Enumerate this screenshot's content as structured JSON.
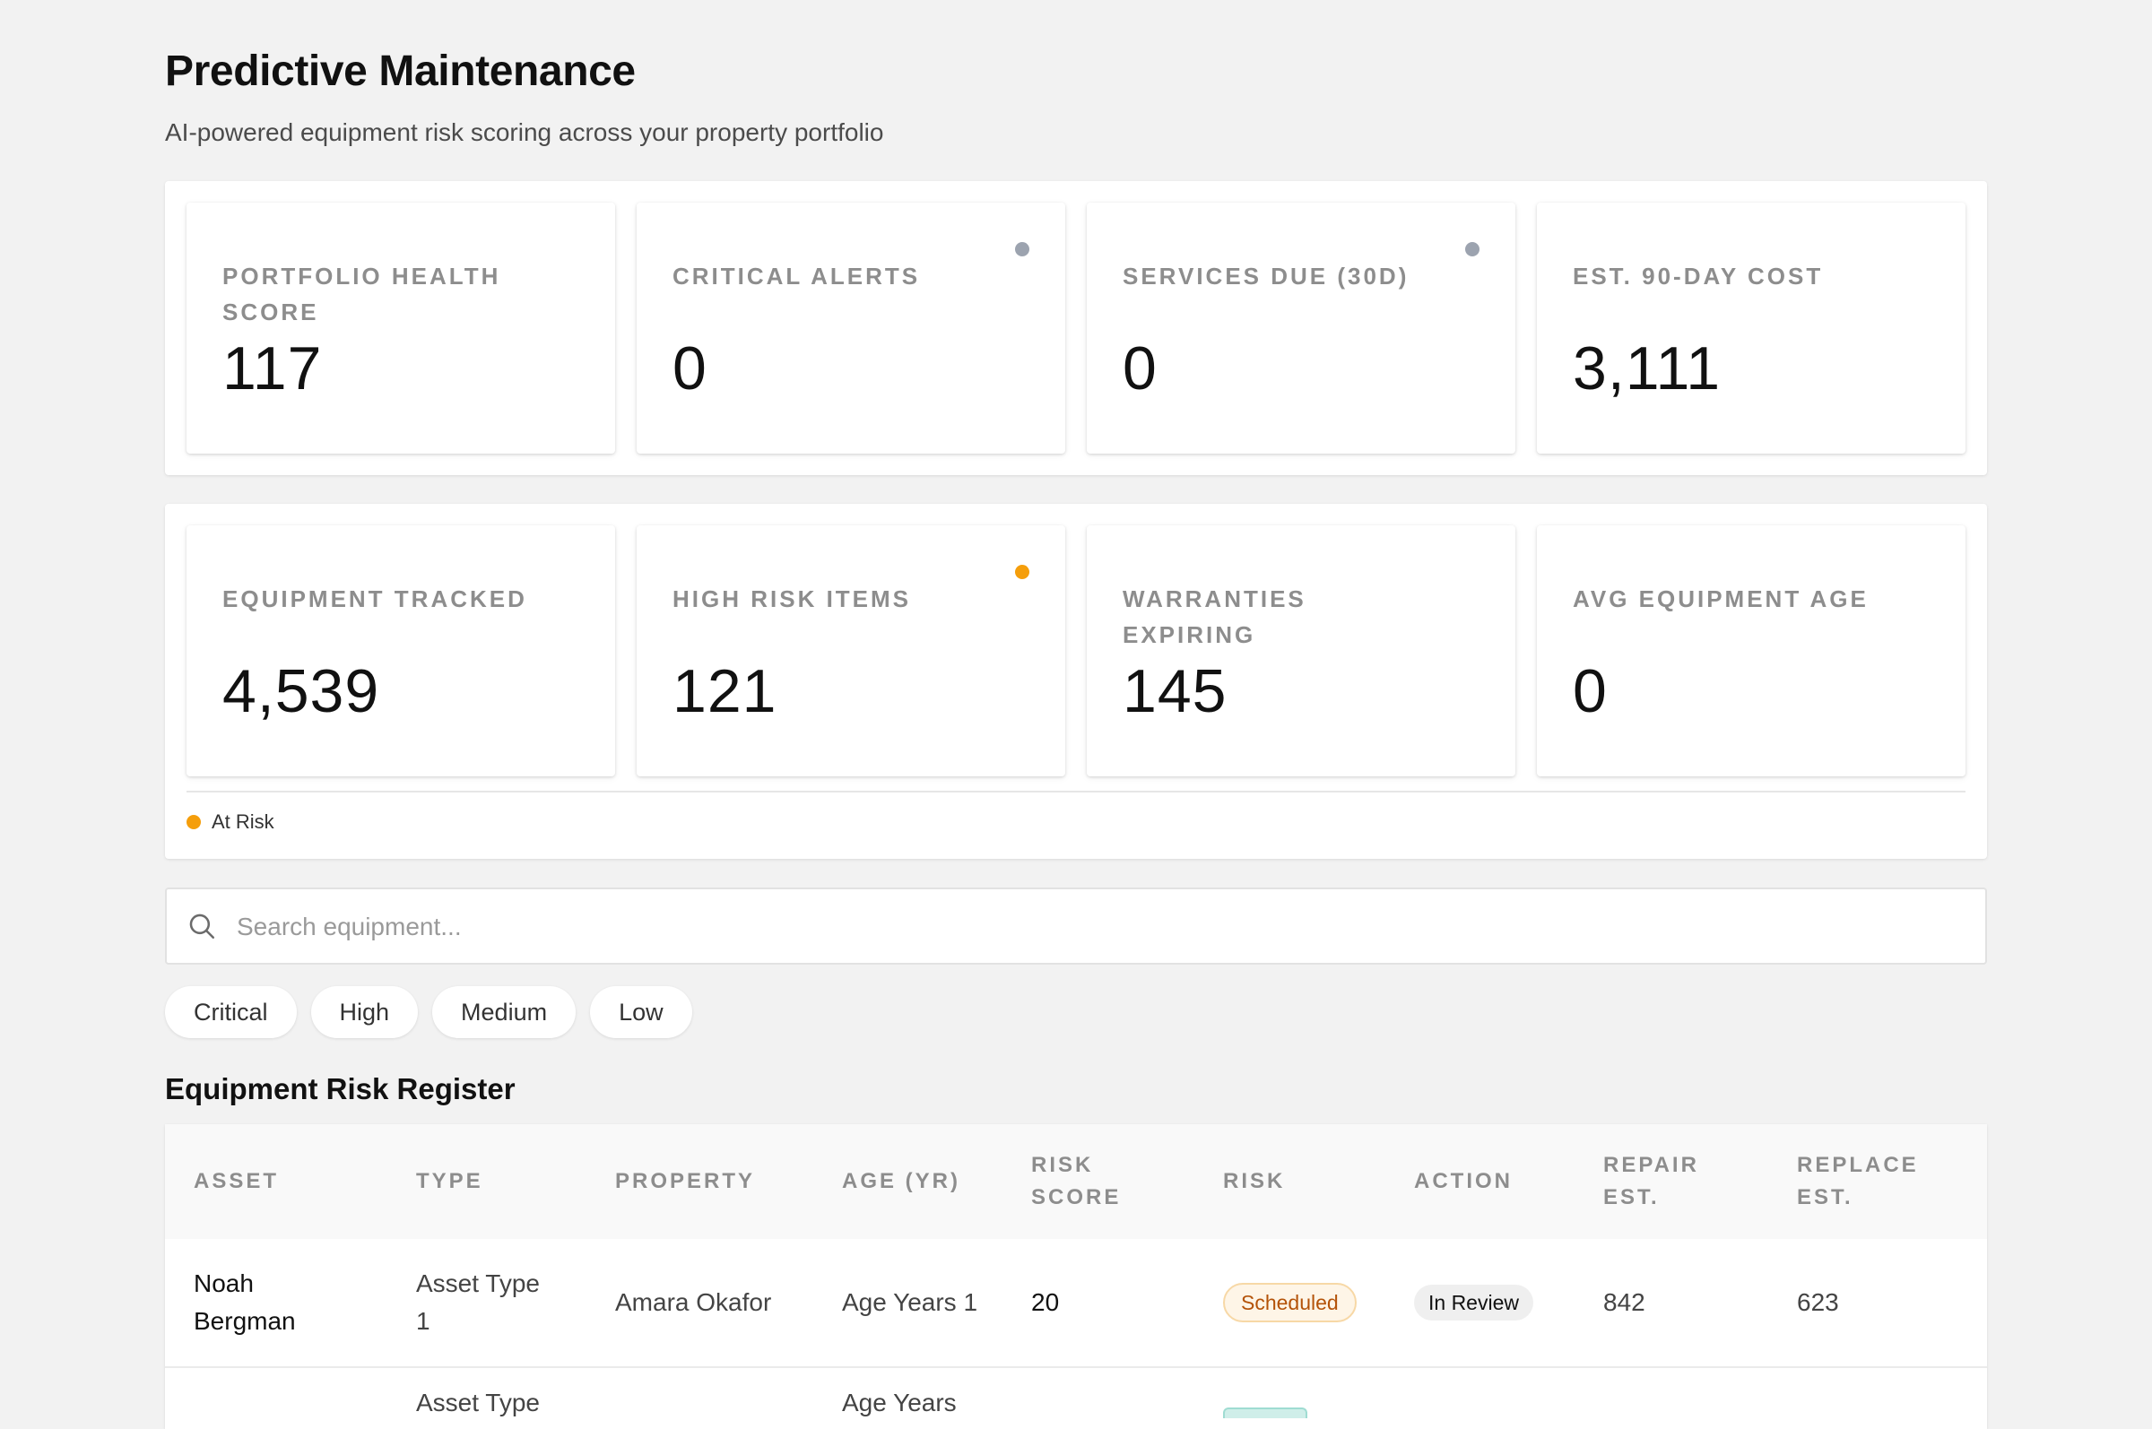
{
  "header": {
    "title": "Predictive Maintenance",
    "subtitle": "AI-powered equipment risk scoring across your property portfolio"
  },
  "kpis_row1": [
    {
      "label": "Portfolio Health Score",
      "value": "117",
      "dot_color": ""
    },
    {
      "label": "Critical Alerts",
      "value": "0",
      "dot_color": "#9ca3af"
    },
    {
      "label": "Services Due (30d)",
      "value": "0",
      "dot_color": "#9ca3af"
    },
    {
      "label": "Est. 90-Day Cost",
      "value": "3,111",
      "dot_color": ""
    }
  ],
  "kpis_row2": [
    {
      "label": "Equipment Tracked",
      "value": "4,539",
      "dot_color": ""
    },
    {
      "label": "High Risk Items",
      "value": "121",
      "dot_color": "#f59e0b"
    },
    {
      "label": "Warranties Expiring",
      "value": "145",
      "dot_color": ""
    },
    {
      "label": "Avg Equipment Age",
      "value": "0",
      "dot_color": ""
    }
  ],
  "legend": {
    "label": "At Risk",
    "color": "#f59e0b"
  },
  "search": {
    "placeholder": "Search equipment...",
    "value": ""
  },
  "filters": [
    "Critical",
    "High",
    "Medium",
    "Low"
  ],
  "table": {
    "title": "Equipment Risk Register",
    "columns": [
      "Asset",
      "Type",
      "Property",
      "Age (yr)",
      "Risk Score",
      "Risk",
      "Action",
      "Repair Est.",
      "Replace Est."
    ],
    "rows": [
      {
        "asset": "Noah Bergman",
        "type": "Asset Type 1",
        "property": "Amara Okafor",
        "age": "Age Years 1",
        "risk_score": "20",
        "risk": "Scheduled",
        "action": "In Review",
        "repair": "842",
        "replace": "623"
      },
      {
        "asset": "",
        "type": "Asset Type",
        "property": "",
        "age": "Age Years",
        "risk_score": "",
        "risk": "",
        "action": "",
        "repair": "",
        "replace": ""
      }
    ]
  },
  "colors": {
    "background": "#f2f2f2",
    "card": "#ffffff",
    "muted_label": "#8d8d8d",
    "warning": "#f59e0b",
    "neutral_dot": "#9ca3af",
    "scheduled_badge_text": "#b45309"
  }
}
